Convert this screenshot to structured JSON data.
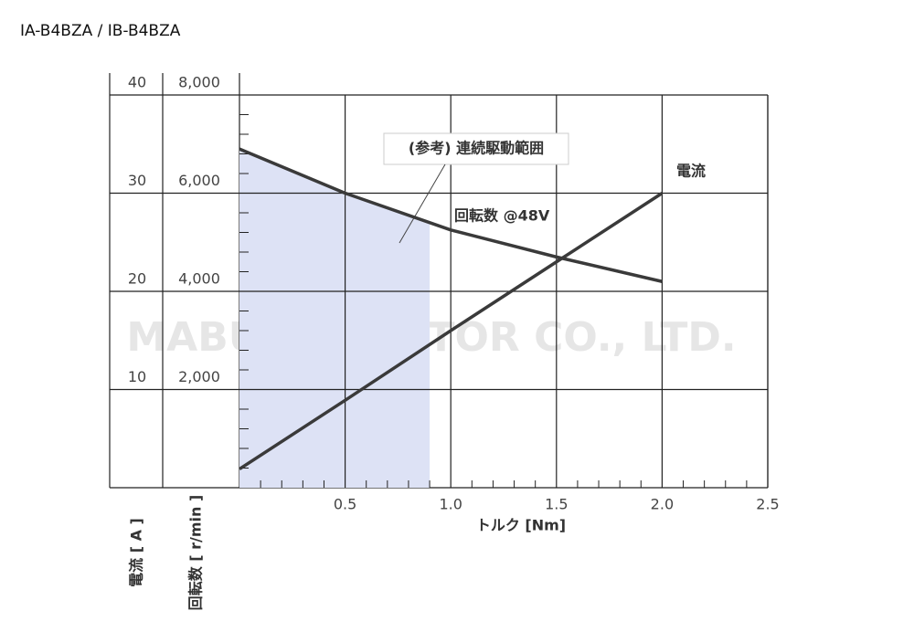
{
  "chart_data": {
    "type": "line",
    "title": "IA-B4BZA / IB-B4BZA",
    "watermark": "MABUCHI MOTOR CO., LTD.",
    "x_label": "トルク [Nm]",
    "y_label": "電流 [ A ]",
    "y2_label": "回転数 [ r/min ]",
    "annotation": "(参考) 連続駆動範囲",
    "x": [
      0,
      0.5,
      1.0,
      1.5,
      2.0
    ],
    "series": [
      {
        "name": "回転数 @48V",
        "color": "#3a3a3a",
        "axis": "y2",
        "values": [
          6900,
          6000,
          5250,
          4700,
          4200
        ]
      },
      {
        "name": "電流",
        "color": "#3a3a3a",
        "values": [
          1.9,
          8.9,
          16.0,
          23.0,
          30
        ]
      }
    ],
    "shaded_region": {
      "x": [
        0,
        0.9
      ],
      "color": "#dde2f5"
    },
    "xlim": [
      0,
      2.5
    ],
    "xticks": [
      0.5,
      {
        "value": 1,
        "label": "1.0"
      },
      1.5,
      {
        "value": 2,
        "label": "2.0"
      },
      2.5
    ],
    "xminorticks": [
      0.1,
      0.2,
      0.3,
      0.4,
      0.6,
      0.7,
      0.8,
      0.9,
      1.1,
      1.2,
      1.3,
      1.4,
      1.6,
      1.7,
      1.8,
      1.9,
      2.1,
      2.2,
      2.3,
      2.4
    ],
    "ylim": [
      0,
      40
    ],
    "yticks": [
      10,
      20,
      30,
      40
    ],
    "y2lim": [
      0,
      8000
    ],
    "y2ticks": [
      {
        "value": 2000,
        "label": "2,000"
      },
      {
        "value": 4000,
        "label": "4,000"
      },
      {
        "value": 6000,
        "label": "6,000"
      },
      {
        "value": 8000,
        "label": "8,000"
      }
    ],
    "y2minorticks": [
      400,
      800,
      1200,
      1600,
      2400,
      2800,
      3200,
      3600,
      4400,
      4800,
      5200,
      5600,
      6400,
      6800,
      7200,
      7600
    ],
    "grid": true
  }
}
